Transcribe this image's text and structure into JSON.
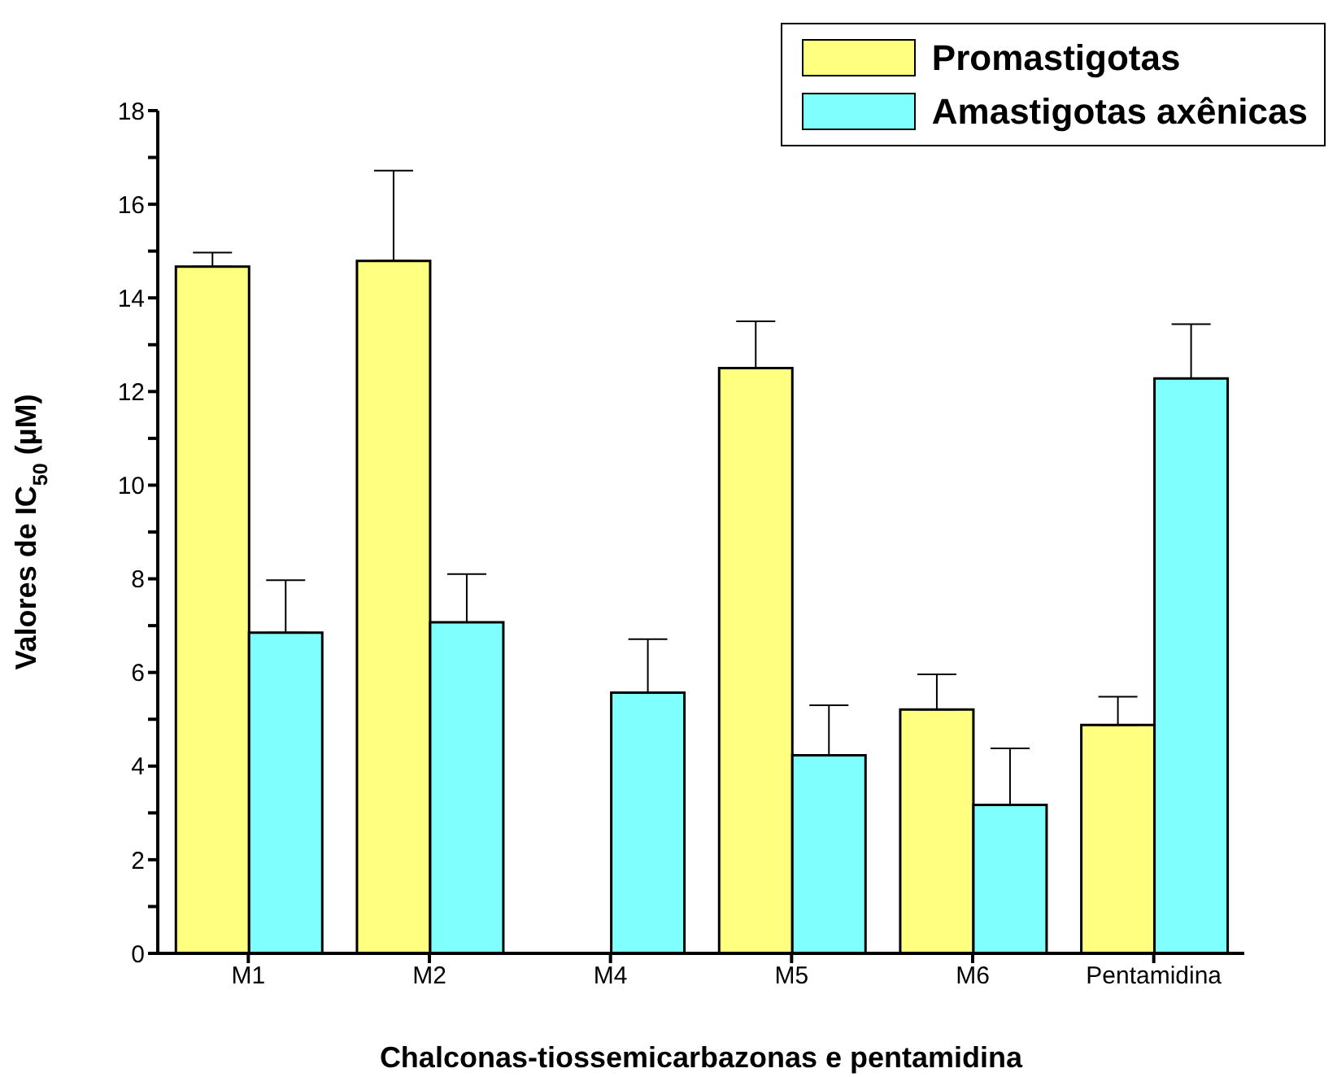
{
  "chart_data": {
    "type": "bar",
    "xlabel": "Chalconas-tiossemicarbazonas e pentamidina",
    "ylabel": "Valores de IC$_{50}$ (µM)",
    "categories": [
      "M1",
      "M2",
      "M4",
      "M5",
      "M6",
      "Pentamidina"
    ],
    "series": [
      {
        "name": "Promastigotas",
        "color": "#ffff80",
        "values": [
          14.67,
          14.79,
          null,
          12.5,
          5.21,
          4.88
        ],
        "errors": [
          0.3,
          1.93,
          null,
          1.0,
          0.75,
          0.6
        ]
      },
      {
        "name": "Amastigotas axênicas",
        "color": "#80ffff",
        "values": [
          6.85,
          7.07,
          5.57,
          4.23,
          3.17,
          12.28
        ],
        "errors": [
          1.12,
          1.03,
          1.14,
          1.07,
          1.21,
          1.16
        ]
      }
    ],
    "ylim": [
      0,
      18
    ],
    "yticks": [
      0,
      {
        "value": 1,
        "label": null
      },
      2,
      {
        "value": 3,
        "label": null
      },
      4,
      {
        "value": 5,
        "label": null
      },
      6,
      {
        "value": 7,
        "label": null
      },
      8,
      {
        "value": 9,
        "label": null
      },
      10,
      {
        "value": 11,
        "label": null
      },
      12,
      {
        "value": 13,
        "label": null
      },
      14,
      {
        "value": 15,
        "label": null
      },
      16,
      {
        "value": 17,
        "label": null
      },
      18
    ],
    "grid": false,
    "legend": "top right"
  }
}
